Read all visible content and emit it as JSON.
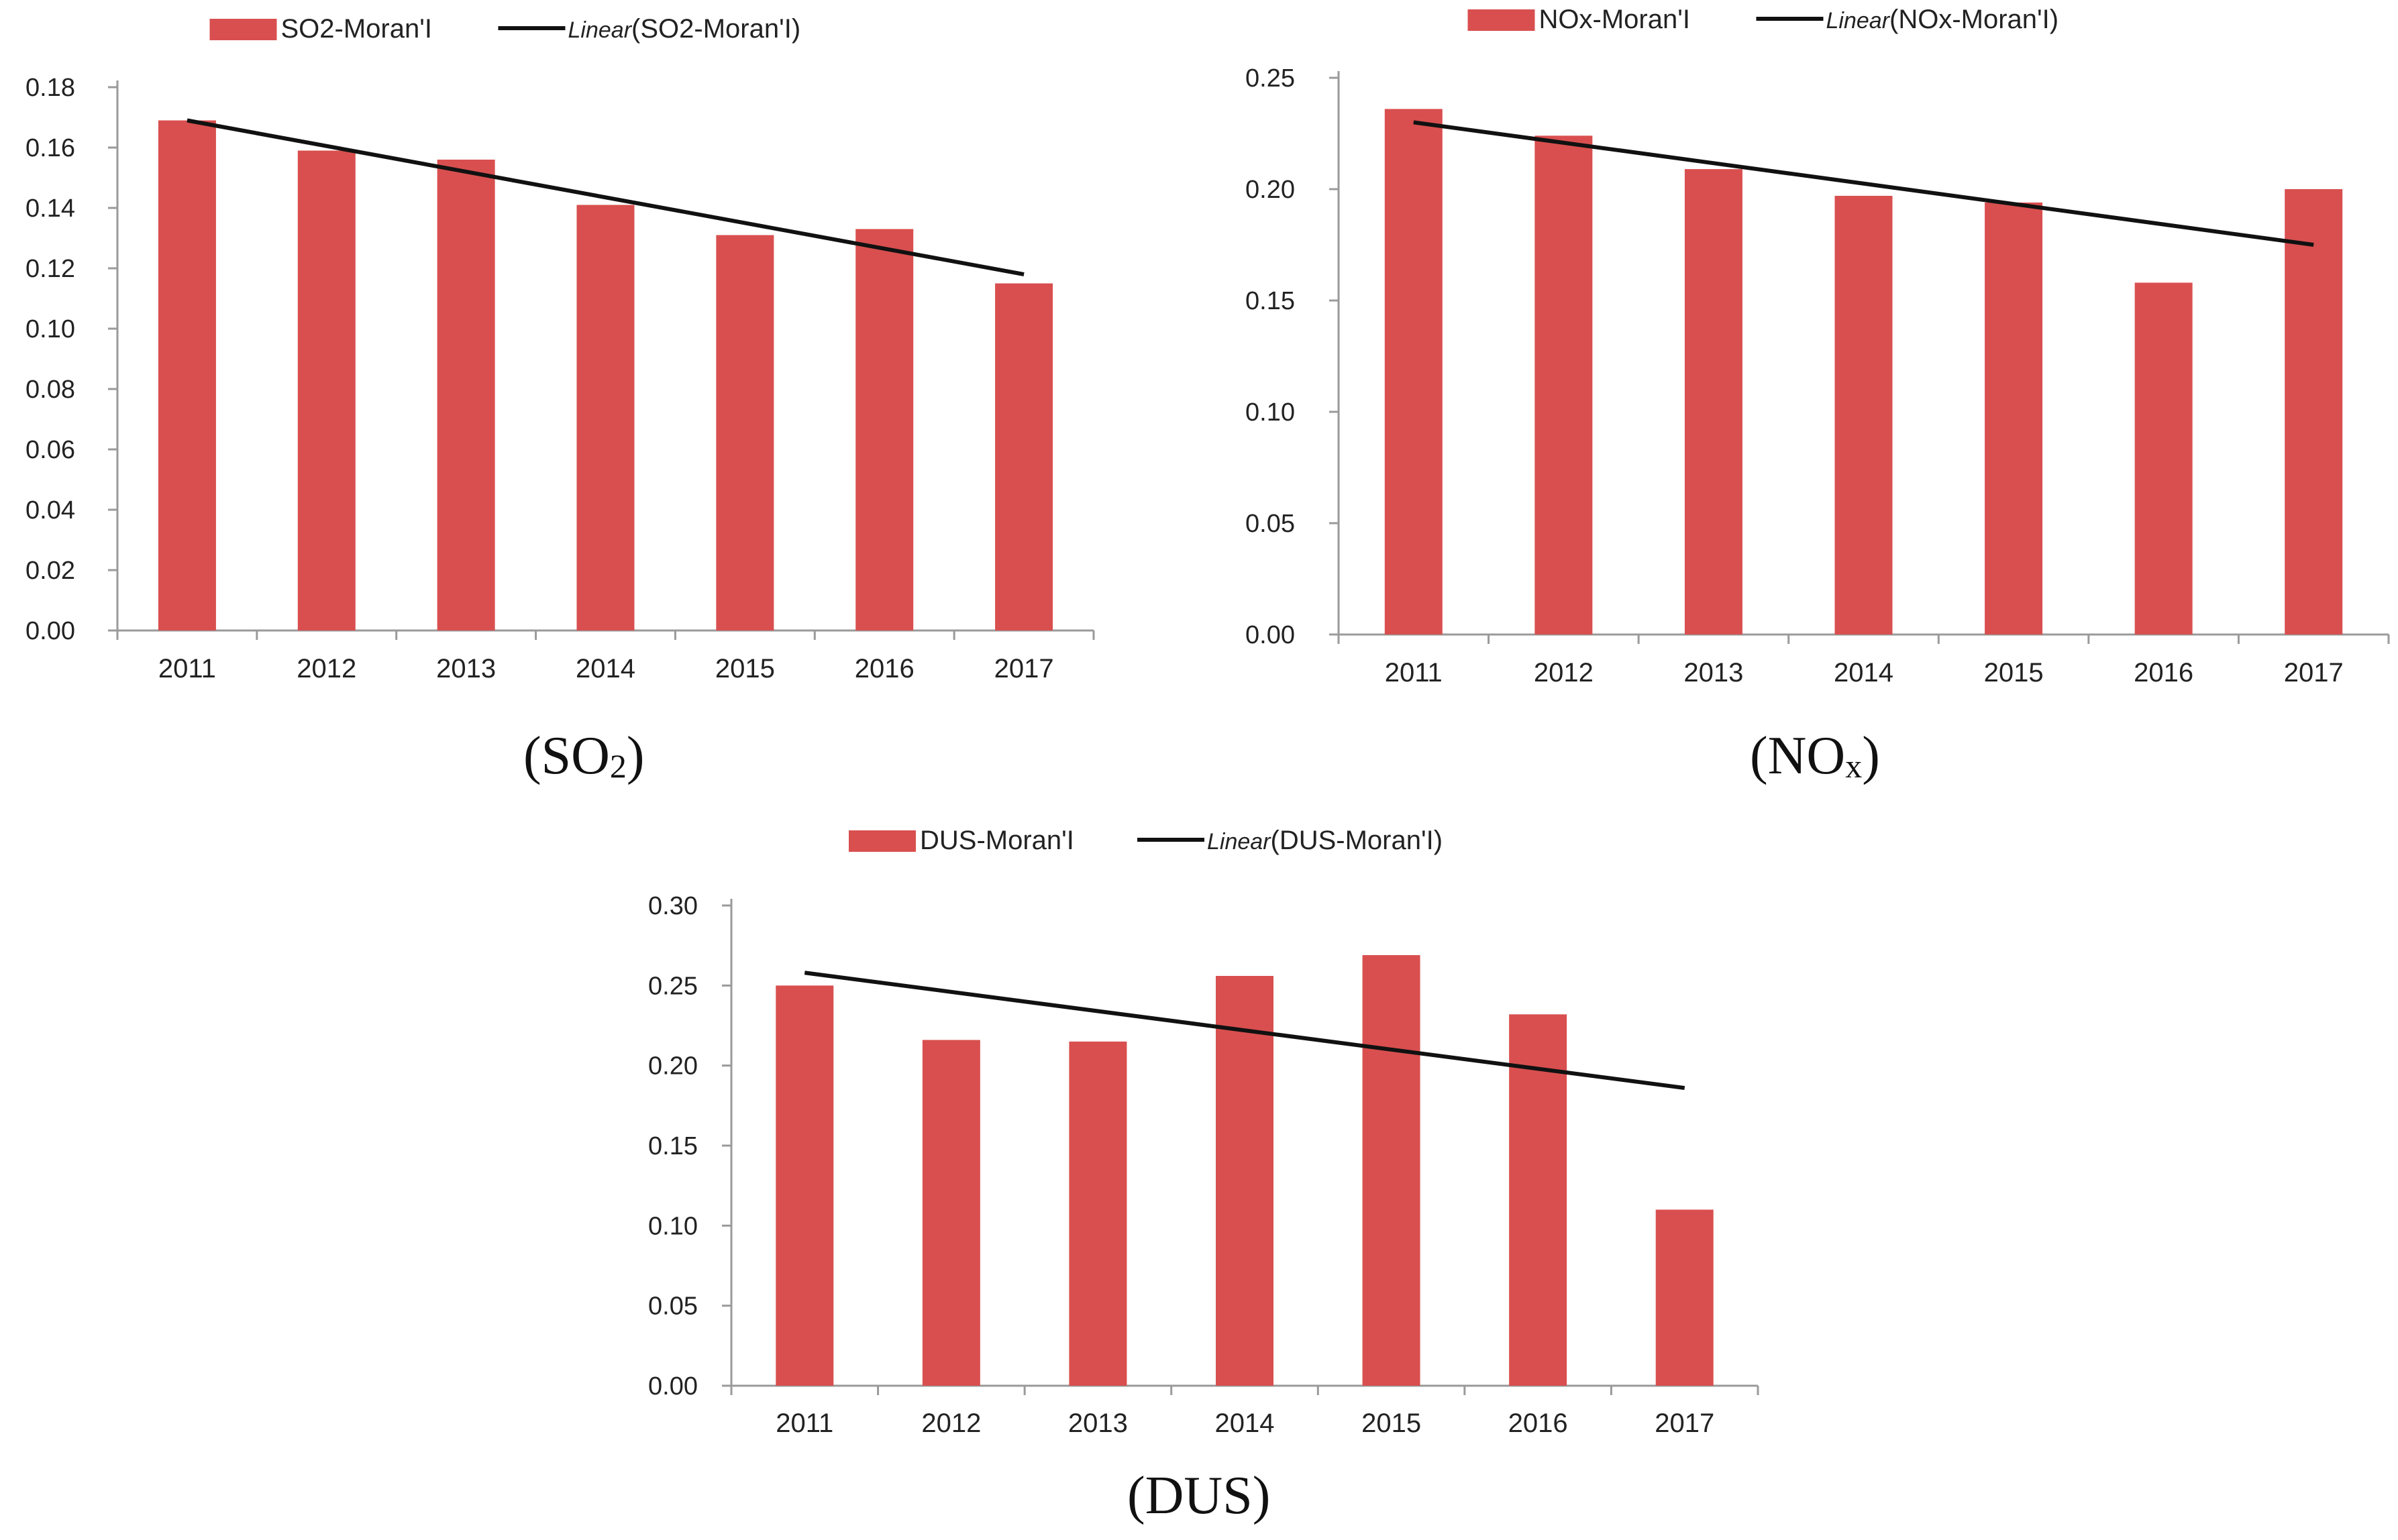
{
  "colors": {
    "bar": "#d94f4f",
    "trend": "#111111",
    "axis": "#9a9a9a",
    "text": "#222222"
  },
  "chart_data": [
    {
      "type": "bar",
      "id": "so2",
      "caption": {
        "main": "SO",
        "sub": "2"
      },
      "categories": [
        "2011",
        "2012",
        "2013",
        "2014",
        "2015",
        "2016",
        "2017"
      ],
      "series": [
        {
          "name": "SO2-Moran'I",
          "type": "bar",
          "values": [
            0.169,
            0.159,
            0.156,
            0.141,
            0.131,
            0.133,
            0.115
          ]
        },
        {
          "name": "(SO2-Moran'I)",
          "prefix": "Linear",
          "type": "trendline",
          "start": 0.169,
          "end": 0.118
        }
      ],
      "yticks": [
        "0.00",
        "0.02",
        "0.04",
        "0.06",
        "0.08",
        "0.10",
        "0.12",
        "0.14",
        "0.16",
        "0.18"
      ],
      "ylim": [
        0,
        0.18
      ],
      "legend": "top"
    },
    {
      "type": "bar",
      "id": "nox",
      "caption": {
        "main": "NO",
        "sub": "x"
      },
      "categories": [
        "2011",
        "2012",
        "2013",
        "2014",
        "2015",
        "2016",
        "2017"
      ],
      "series": [
        {
          "name": "NOx-Moran'I",
          "type": "bar",
          "values": [
            0.236,
            0.224,
            0.209,
            0.197,
            0.194,
            0.158,
            0.2
          ]
        },
        {
          "name": "(NOx-Moran'I)",
          "prefix": "Linear",
          "type": "trendline",
          "start": 0.23,
          "end": 0.175
        }
      ],
      "yticks": [
        "0.00",
        "0.05",
        "0.10",
        "0.15",
        "0.20",
        "0.25"
      ],
      "ylim": [
        0,
        0.25
      ],
      "legend": "top"
    },
    {
      "type": "bar",
      "id": "dus",
      "caption": {
        "main": "DUS",
        "sub": ""
      },
      "categories": [
        "2011",
        "2012",
        "2013",
        "2014",
        "2015",
        "2016",
        "2017"
      ],
      "series": [
        {
          "name": "DUS-Moran'I",
          "type": "bar",
          "values": [
            0.25,
            0.216,
            0.215,
            0.256,
            0.269,
            0.232,
            0.11
          ]
        },
        {
          "name": "(DUS-Moran'I)",
          "prefix": "Linear",
          "type": "trendline",
          "start": 0.258,
          "end": 0.186
        }
      ],
      "yticks": [
        "0.00",
        "0.05",
        "0.10",
        "0.15",
        "0.20",
        "0.25",
        "0.30"
      ],
      "ylim": [
        0,
        0.3
      ],
      "legend": "top"
    }
  ]
}
